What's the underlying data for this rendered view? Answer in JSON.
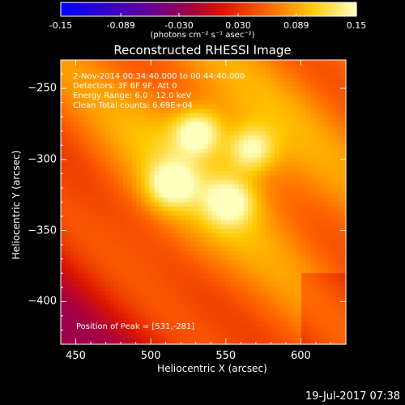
{
  "chart_data": {
    "type": "heatmap",
    "title": "Reconstructed RHESSI Image",
    "xlabel": "Heliocentric X (arcsec)",
    "ylabel": "Heliocentric Y (arcsec)",
    "xlim": [
      440,
      630
    ],
    "ylim": [
      -430,
      -230
    ],
    "x_ticks": [
      450,
      500,
      550,
      600
    ],
    "y_ticks": [
      -250,
      -300,
      -350,
      -400
    ],
    "colorbar": {
      "min": -0.15,
      "max": 0.15,
      "ticks": [
        "-0.15",
        "-0.089",
        "-0.030",
        "0.030",
        "0.089",
        "0.15"
      ],
      "units": "(photons cm⁻² s⁻¹ asec⁻²)"
    },
    "annotations": [
      "2-Nov-2014 00:34:40.000 to 00:44:40.000",
      "Detectors: 3F 6F 9F, Att 0",
      "Energy Range: 6.0 - 12.0 keV",
      "Clean    Total counts: 6.69E+04",
      "Position of Peak = [531,-281]"
    ],
    "sources": [
      {
        "x": 531,
        "y": -281,
        "value": 0.15
      },
      {
        "x": 567,
        "y": -293,
        "value": 0.13
      },
      {
        "x": 513,
        "y": -318,
        "value": 0.125
      },
      {
        "x": 553,
        "y": -330,
        "value": 0.12
      }
    ],
    "peak": {
      "x": 531,
      "y": -281
    }
  },
  "footer": {
    "date": "19-Jul-2017 07:38"
  },
  "colors": {
    "background": "#000000",
    "text": "#ffffff"
  }
}
